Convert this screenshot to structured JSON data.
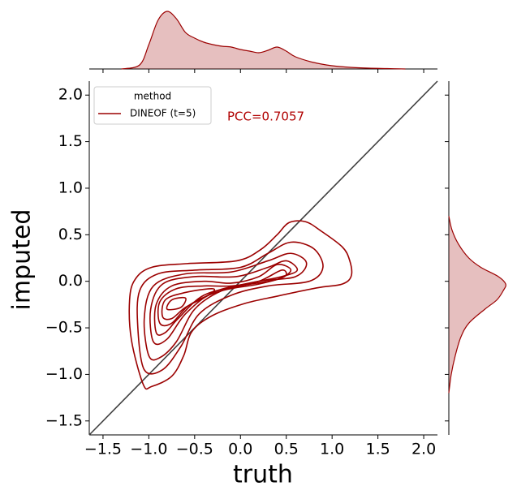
{
  "chart_data": {
    "type": "kde_joint",
    "xlabel": "truth",
    "ylabel": "imputed",
    "annotation": "PCC=0.7057",
    "annotation_color": "#b00000",
    "xlim": [
      -1.65,
      2.15
    ],
    "ylim": [
      -1.65,
      2.15
    ],
    "xticks": [
      {
        "value": -1.5,
        "label": "−1.5"
      },
      {
        "value": -1.0,
        "label": "−1.0"
      },
      {
        "value": -0.5,
        "label": "−0.5"
      },
      {
        "value": 0.0,
        "label": "0.0"
      },
      {
        "value": 0.5,
        "label": "0.5"
      },
      {
        "value": 1.0,
        "label": "1.0"
      },
      {
        "value": 1.5,
        "label": "1.5"
      },
      {
        "value": 2.0,
        "label": "2.0"
      }
    ],
    "yticks": [
      {
        "value": -1.5,
        "label": "−1.5"
      },
      {
        "value": -1.0,
        "label": "−1.0"
      },
      {
        "value": -0.5,
        "label": "−0.5"
      },
      {
        "value": 0.0,
        "label": "0.0"
      },
      {
        "value": 0.5,
        "label": "0.5"
      },
      {
        "value": 1.0,
        "label": "1.0"
      },
      {
        "value": 1.5,
        "label": "1.5"
      },
      {
        "value": 2.0,
        "label": "2.0"
      }
    ],
    "identity_line": true,
    "identity_color": "#404040",
    "legend": {
      "title": "method",
      "loc": "upper left"
    },
    "density_lim": [
      0,
      0.75
    ],
    "series": [
      {
        "name": "DINEOF (t=5)",
        "color": "#9b0000",
        "contours": [
          {
            "x": [
              -1.06,
              -1.19,
              -1.21,
              -1.15,
              -0.97,
              -0.58,
              -0.04,
              0.22,
              0.4,
              0.53,
              0.71,
              0.88,
              1.11,
              1.19,
              1.21,
              1.11,
              0.84,
              0.4,
              0.04,
              -0.31,
              -0.53,
              -0.62,
              -0.75,
              -0.97
            ],
            "y": [
              -1.11,
              -0.63,
              -0.2,
              0.02,
              0.15,
              0.19,
              0.22,
              0.34,
              0.5,
              0.63,
              0.64,
              0.54,
              0.37,
              0.23,
              0.06,
              -0.03,
              -0.07,
              -0.16,
              -0.24,
              -0.37,
              -0.54,
              -0.8,
              -1.02,
              -1.13
            ]
          },
          {
            "x": [
              -1.05,
              -1.12,
              -1.1,
              -0.9,
              -0.5,
              0,
              0.3,
              0.55,
              0.8,
              0.9,
              0.75,
              0.3,
              -0.1,
              -0.45,
              -0.65,
              -0.85
            ],
            "y": [
              -0.95,
              -0.5,
              -0.1,
              0.08,
              0.12,
              0.15,
              0.3,
              0.42,
              0.35,
              0.15,
              0.0,
              -0.05,
              -0.15,
              -0.35,
              -0.7,
              -0.95
            ]
          },
          {
            "x": [
              -1.0,
              -1.05,
              -0.95,
              -0.6,
              -0.1,
              0.3,
              0.55,
              0.72,
              0.6,
              0.2,
              -0.2,
              -0.5,
              -0.7,
              -0.88
            ],
            "y": [
              -0.8,
              -0.4,
              -0.05,
              0.08,
              0.1,
              0.22,
              0.3,
              0.2,
              0.05,
              0.0,
              -0.1,
              -0.3,
              -0.65,
              -0.82
            ]
          },
          {
            "x": [
              -0.95,
              -0.98,
              -0.85,
              -0.5,
              -0.05,
              0.3,
              0.5,
              0.62,
              0.45,
              0.1,
              -0.3,
              -0.6,
              -0.8
            ],
            "y": [
              -0.65,
              -0.3,
              -0.03,
              0.05,
              0.05,
              0.15,
              0.22,
              0.12,
              0.05,
              -0.02,
              -0.12,
              -0.35,
              -0.62
            ]
          },
          {
            "x": [
              -0.92,
              -0.92,
              -0.75,
              -0.4,
              -0.1,
              0.2,
              0.4,
              0.55,
              0.4,
              0.0,
              -0.4,
              -0.68,
              -0.82
            ],
            "y": [
              -0.55,
              -0.25,
              -0.05,
              0.0,
              -0.02,
              0.05,
              0.18,
              0.12,
              0.02,
              -0.05,
              -0.15,
              -0.4,
              -0.55
            ]
          },
          {
            "x": [
              -0.88,
              -0.88,
              -0.7,
              -0.4,
              -0.1,
              0.2,
              0.45,
              0.48,
              0.2,
              -0.2,
              -0.55,
              -0.75
            ],
            "y": [
              -0.45,
              -0.22,
              -0.08,
              -0.05,
              -0.05,
              0.0,
              0.12,
              0.05,
              -0.03,
              -0.1,
              -0.25,
              -0.45
            ]
          },
          {
            "x": [
              -0.85,
              -0.82,
              -0.6,
              -0.3,
              -0.35,
              -0.6,
              -0.75
            ],
            "y": [
              -0.38,
              -0.2,
              -0.12,
              -0.08,
              -0.15,
              -0.28,
              -0.4
            ]
          },
          {
            "x": [
              -0.8,
              -0.75,
              -0.6,
              -0.65
            ],
            "y": [
              -0.3,
              -0.2,
              -0.18,
              -0.28
            ]
          }
        ],
        "x_marginal": {
          "x": [
            -1.3,
            -1.1,
            -1.0,
            -0.9,
            -0.8,
            -0.7,
            -0.6,
            -0.5,
            -0.4,
            -0.3,
            -0.2,
            -0.1,
            0,
            0.1,
            0.2,
            0.3,
            0.4,
            0.5,
            0.6,
            0.8,
            1.0,
            1.2,
            1.4,
            1.6,
            1.8
          ],
          "density": [
            0,
            0.05,
            0.3,
            0.6,
            0.71,
            0.62,
            0.45,
            0.38,
            0.33,
            0.3,
            0.28,
            0.27,
            0.24,
            0.22,
            0.2,
            0.23,
            0.27,
            0.22,
            0.15,
            0.08,
            0.04,
            0.02,
            0.01,
            0.005,
            0
          ]
        },
        "y_marginal": {
          "y": [
            -1.2,
            -1.0,
            -0.8,
            -0.6,
            -0.45,
            -0.3,
            -0.2,
            -0.1,
            -0.03,
            0.05,
            0.15,
            0.25,
            0.4,
            0.55,
            0.7
          ],
          "density": [
            0,
            0.03,
            0.08,
            0.15,
            0.25,
            0.45,
            0.6,
            0.68,
            0.71,
            0.62,
            0.4,
            0.25,
            0.12,
            0.04,
            0
          ]
        }
      }
    ]
  }
}
